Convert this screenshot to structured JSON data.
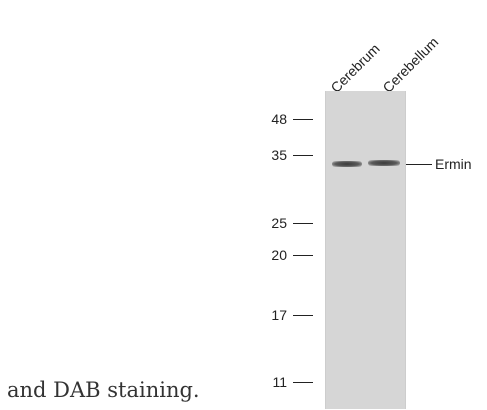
{
  "caption": "and DAB staining.",
  "lanes": [
    "Cerebrum",
    "Cerebellum"
  ],
  "markers": [
    "48",
    "35",
    "25",
    "20",
    "17",
    "11"
  ],
  "target_label": "Ermin",
  "colors": {
    "membrane": "#d6d6d6",
    "band": "#3a3a3a",
    "text": "#222222"
  }
}
